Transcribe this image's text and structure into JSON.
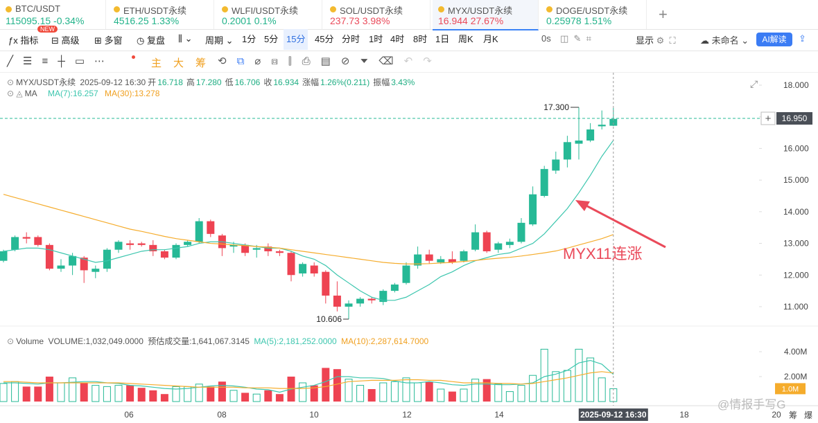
{
  "tabs": [
    {
      "name": "BTC/USDT",
      "price": "115095.15",
      "change": "-0.34%",
      "color": "#22b38a"
    },
    {
      "name": "ETH/USDT永续",
      "price": "4516.25",
      "change": "1.33%",
      "color": "#22b38a"
    },
    {
      "name": "WLFI/USDT永续",
      "price": "0.2001",
      "change": "0.1%",
      "color": "#22b38a"
    },
    {
      "name": "SOL/USDT永续",
      "price": "237.73",
      "change": "3.98%",
      "color": "#ea4a5a"
    },
    {
      "name": "MYX/USDT永续",
      "price": "16.944",
      "change": "27.67%",
      "color": "#ea4a5a"
    },
    {
      "name": "DOGE/USDT永续",
      "price": "0.25978",
      "change": "1.51%",
      "color": "#22b38a"
    }
  ],
  "toolbar": {
    "indicator": "指标",
    "new_badge": "NEW",
    "advanced": "高级",
    "multi": "多窗",
    "replay": "复盘",
    "period": "周期",
    "intervals": [
      "1分",
      "5分",
      "15分",
      "45分",
      "分时",
      "1时",
      "4时",
      "8时",
      "1日",
      "周K",
      "月K"
    ],
    "active_interval": "15分",
    "timer": "0s",
    "display": "显示",
    "layout_name": "未命名",
    "ai": "AI解读"
  },
  "draw_tools": [
    "主",
    "大",
    "筹"
  ],
  "info": {
    "symbol": "MYX/USDT永续",
    "time": "2025-09-12 16:30",
    "items": [
      {
        "label": "开",
        "value": "16.718"
      },
      {
        "label": "高",
        "value": "17.280"
      },
      {
        "label": "低",
        "value": "16.706"
      },
      {
        "label": "收",
        "value": "16.934"
      },
      {
        "label": "涨幅",
        "value": "1.26%(0.211)"
      },
      {
        "label": "振幅",
        "value": "3.43%"
      }
    ],
    "ma_title": "MA",
    "ma7": "MA(7):16.257",
    "ma30": "MA(30):13.278"
  },
  "volume_info": {
    "title": "Volume",
    "volume": "VOLUME:1,032,049.0000",
    "estimate": "预估成交量:1,641,067.3145",
    "ma5": "MA(5):2,181,252.0000",
    "ma10": "MA(10):2,287,614.7000"
  },
  "chart": {
    "type": "candlestick",
    "up_color": "#26b996",
    "down_color": "#ee4352",
    "ylim": [
      10.518,
      18.394
    ],
    "yticks": [
      {
        "value": 18,
        "label": "18.000"
      },
      {
        "value": 17,
        "label": "17.000"
      },
      {
        "value": 16,
        "label": "16.000"
      },
      {
        "value": 15,
        "label": "15.000"
      },
      {
        "value": 14,
        "label": "14.000"
      },
      {
        "value": 13,
        "label": "13.000"
      },
      {
        "value": 12,
        "label": "12.000"
      },
      {
        "value": 11,
        "label": "11.000"
      }
    ],
    "open": [
      12.45,
      12.8,
      13.2,
      13.2,
      12.95,
      12.2,
      12.3,
      12.55,
      12.1,
      12.2,
      12.8,
      13.0,
      13.0,
      12.95,
      12.75,
      12.55,
      12.95,
      13.05,
      13.7,
      13.25,
      12.9,
      12.95,
      12.8,
      12.9,
      12.75,
      12.7,
      12.05,
      12.3,
      12.1,
      11.35,
      11.0,
      11.1,
      11.25,
      11.15,
      11.5,
      11.75,
      12.3,
      12.65,
      12.4,
      12.5,
      12.45,
      12.8,
      13.35,
      12.8,
      12.95,
      13.05,
      13.6,
      14.5,
      15.3,
      15.65,
      16.15,
      16.25,
      16.7,
      16.718
    ],
    "high": [
      12.8,
      13.25,
      13.35,
      13.25,
      13.0,
      12.5,
      12.7,
      12.6,
      12.3,
      12.85,
      13.1,
      13.1,
      13.05,
      13.1,
      12.8,
      13.0,
      13.1,
      13.8,
      13.75,
      13.3,
      13.05,
      13.0,
      12.95,
      13.0,
      12.8,
      12.75,
      12.4,
      12.4,
      12.15,
      11.8,
      11.2,
      11.3,
      11.3,
      11.55,
      11.75,
      12.4,
      12.9,
      12.8,
      12.6,
      12.75,
      12.8,
      13.6,
      13.4,
      13.05,
      13.15,
      13.8,
      14.8,
      15.45,
      15.9,
      16.4,
      17.3,
      16.8,
      17.2,
      17.28
    ],
    "low": [
      12.4,
      12.75,
      13.0,
      12.9,
      12.15,
      12.1,
      12.0,
      11.75,
      11.9,
      12.1,
      12.7,
      12.8,
      12.9,
      12.6,
      12.5,
      12.5,
      12.9,
      13.0,
      13.2,
      12.6,
      12.7,
      12.6,
      12.55,
      12.6,
      12.6,
      11.8,
      11.95,
      11.95,
      11.1,
      10.85,
      10.606,
      11.0,
      11.1,
      11.05,
      11.45,
      11.7,
      12.2,
      12.35,
      12.35,
      12.35,
      12.4,
      12.75,
      12.7,
      12.7,
      12.85,
      13.0,
      13.55,
      14.45,
      15.2,
      15.4,
      15.65,
      16.2,
      16.6,
      16.706
    ],
    "close": [
      12.75,
      13.2,
      13.15,
      12.95,
      12.2,
      12.3,
      12.6,
      12.15,
      12.2,
      12.8,
      13.05,
      12.95,
      12.95,
      12.75,
      12.55,
      12.95,
      13.05,
      13.7,
      13.3,
      12.85,
      12.95,
      12.7,
      12.85,
      12.75,
      12.7,
      12.0,
      12.35,
      12.05,
      11.35,
      11.0,
      11.1,
      11.25,
      11.2,
      11.5,
      11.7,
      12.3,
      12.65,
      12.45,
      12.5,
      12.4,
      12.75,
      13.35,
      12.75,
      13.0,
      13.05,
      13.65,
      14.55,
      15.35,
      15.65,
      16.2,
      16.25,
      16.6,
      16.75,
      16.934
    ],
    "ma": [
      {
        "name": "MA(7)",
        "color": "#3cc6ae",
        "values": [
          12.75,
          12.8,
          12.85,
          12.85,
          12.8,
          12.7,
          12.6,
          12.5,
          12.4,
          12.45,
          12.55,
          12.65,
          12.75,
          12.8,
          12.8,
          12.85,
          12.9,
          13.0,
          13.05,
          13.05,
          13.0,
          12.95,
          12.9,
          12.85,
          12.85,
          12.75,
          12.6,
          12.5,
          12.3,
          12.0,
          11.75,
          11.5,
          11.3,
          11.2,
          11.2,
          11.3,
          11.5,
          11.7,
          11.95,
          12.1,
          12.3,
          12.45,
          12.55,
          12.65,
          12.7,
          12.85,
          13.0,
          13.3,
          13.7,
          14.1,
          14.6,
          15.15,
          15.75,
          16.257
        ]
      },
      {
        "name": "MA(30)",
        "color": "#f5ac2c",
        "values": [
          14.55,
          14.45,
          14.35,
          14.25,
          14.15,
          14.05,
          13.95,
          13.85,
          13.75,
          13.65,
          13.55,
          13.45,
          13.38,
          13.3,
          13.22,
          13.15,
          13.1,
          13.05,
          13.0,
          12.98,
          12.95,
          12.93,
          12.9,
          12.88,
          12.85,
          12.8,
          12.75,
          12.7,
          12.65,
          12.6,
          12.55,
          12.5,
          12.45,
          12.4,
          12.37,
          12.35,
          12.35,
          12.36,
          12.38,
          12.4,
          12.43,
          12.46,
          12.5,
          12.53,
          12.56,
          12.6,
          12.65,
          12.7,
          12.76,
          12.85,
          12.95,
          13.05,
          13.15,
          13.278
        ]
      }
    ],
    "high_label": "17.300",
    "low_label": "10.606",
    "price_marker": {
      "value": 16.95,
      "label": "16.950"
    },
    "annotation": "MYX11连涨",
    "volume": [
      1.45,
      1.6,
      1.2,
      1.2,
      2.0,
      1.5,
      1.9,
      1.5,
      1.3,
      1.2,
      1.3,
      1.3,
      1.1,
      0.9,
      0.6,
      1.2,
      1.2,
      1.4,
      1.2,
      1.6,
      0.9,
      0.7,
      0.6,
      0.9,
      0.6,
      2.0,
      1.5,
      1.3,
      2.7,
      2.6,
      1.8,
      1.3,
      1.0,
      1.5,
      1.6,
      1.9,
      1.5,
      1.6,
      1.0,
      0.8,
      1.0,
      1.8,
      1.8,
      1.4,
      0.8,
      1.3,
      2.1,
      4.2,
      2.4,
      2.5,
      4.2,
      3.5,
      1.9,
      1.032
    ],
    "volume_ylim": [
      0,
      5.556
    ],
    "volume_yticks": [
      {
        "value": 4,
        "label": "4.00M"
      },
      {
        "value": 2,
        "label": "2.00M"
      }
    ],
    "volume_marker": {
      "value": 1.032,
      "label": "1.0M"
    },
    "volume_ma": [
      {
        "name": "MA(5)",
        "color": "#3cc6ae",
        "values": [
          1.5,
          1.5,
          1.45,
          1.4,
          1.5,
          1.5,
          1.55,
          1.6,
          1.6,
          1.5,
          1.45,
          1.3,
          1.25,
          1.15,
          1.05,
          1.0,
          1.05,
          1.15,
          1.25,
          1.3,
          1.25,
          1.15,
          1.0,
          0.95,
          0.75,
          1.0,
          1.15,
          1.3,
          1.6,
          2.0,
          2.0,
          1.9,
          1.9,
          1.85,
          1.65,
          1.5,
          1.5,
          1.6,
          1.5,
          1.35,
          1.3,
          1.4,
          1.4,
          1.35,
          1.35,
          1.4,
          1.5,
          2.0,
          2.2,
          2.5,
          3.1,
          3.3,
          3.0,
          2.181
        ]
      },
      {
        "name": "MA(10)",
        "color": "#f5ac2c",
        "values": [
          1.6,
          1.6,
          1.55,
          1.5,
          1.5,
          1.5,
          1.5,
          1.5,
          1.5,
          1.5,
          1.5,
          1.45,
          1.4,
          1.35,
          1.3,
          1.25,
          1.2,
          1.15,
          1.15,
          1.15,
          1.15,
          1.1,
          1.1,
          1.1,
          1.05,
          1.05,
          1.05,
          1.1,
          1.2,
          1.4,
          1.6,
          1.65,
          1.7,
          1.7,
          1.7,
          1.75,
          1.75,
          1.7,
          1.7,
          1.6,
          1.5,
          1.5,
          1.5,
          1.45,
          1.45,
          1.4,
          1.45,
          1.6,
          1.75,
          1.9,
          2.1,
          2.3,
          2.4,
          2.288
        ]
      }
    ],
    "x_labels": [
      "06",
      "08",
      "10",
      "12",
      "14",
      "18",
      "20"
    ],
    "cursor_time": "2025-09-12 16:30"
  },
  "footer": {
    "watermark": "@情报手写G",
    "btn1": "筹",
    "btn2": "爆"
  }
}
